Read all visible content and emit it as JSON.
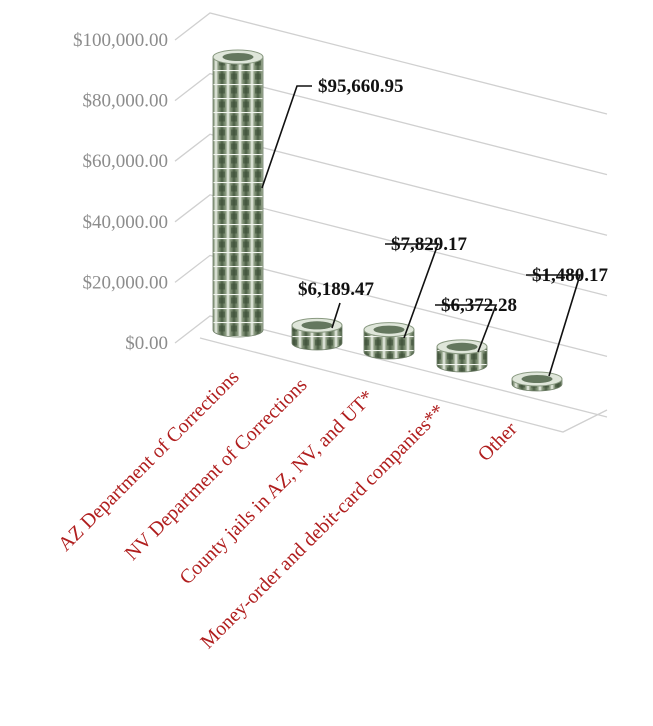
{
  "chart_data": {
    "type": "bar",
    "style": "3d-coin-stacks",
    "categories": [
      "AZ Department of Corrections",
      "NV Department of Corrections",
      "County jails in AZ, NV, and UT*",
      "Money-order and debit-card companies**",
      "Other"
    ],
    "values": [
      95660.95,
      6189.47,
      7829.17,
      6372.28,
      1480.17
    ],
    "data_labels": [
      "$95,660.95",
      "$6,189.47",
      "$7,829.17",
      "$6,372.28",
      "$1,480.17"
    ],
    "y_ticks": [
      "$0.00",
      "$20,000.00",
      "$40,000.00",
      "$60,000.00",
      "$80,000.00",
      "$100,000.00"
    ],
    "ylim": [
      0,
      100000
    ],
    "grid": true,
    "legend": "none",
    "colors": {
      "coin": "#4f6348",
      "coin_rim": "#dfe6da",
      "category_text": "#b01e1e",
      "tick_text": "#8c8c8c",
      "gridline": "#d0d0d0"
    }
  }
}
